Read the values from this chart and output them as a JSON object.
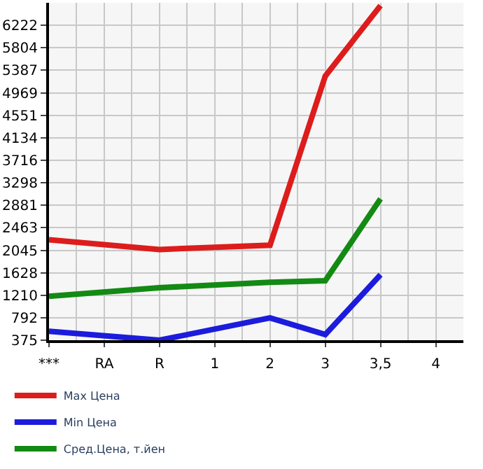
{
  "chart_data": {
    "type": "line",
    "categories": [
      "***",
      "RA",
      "R",
      "1",
      "2",
      "3",
      "3,5",
      "4"
    ],
    "series": [
      {
        "name": "Max Цена",
        "color": "#dd1c1c",
        "values": [
          2240,
          null,
          2060,
          null,
          2140,
          5280,
          6590,
          null
        ]
      },
      {
        "name": "Min Цена",
        "color": "#1c1cdd",
        "values": [
          540,
          null,
          375,
          null,
          790,
          480,
          1590,
          null
        ]
      },
      {
        "name": "Сред.Цена, т.йен",
        "color": "#138a13",
        "values": [
          1190,
          null,
          1350,
          null,
          1450,
          1480,
          3000,
          null
        ]
      }
    ],
    "ylim": [
      375,
      6641
    ],
    "yticks": [
      375,
      792,
      1210,
      1628,
      2045,
      2463,
      2881,
      3298,
      3716,
      4134,
      4551,
      4969,
      5387,
      5804,
      6222
    ],
    "grid": true,
    "legend": "bottom",
    "marker": "none",
    "line_style": "solid"
  }
}
